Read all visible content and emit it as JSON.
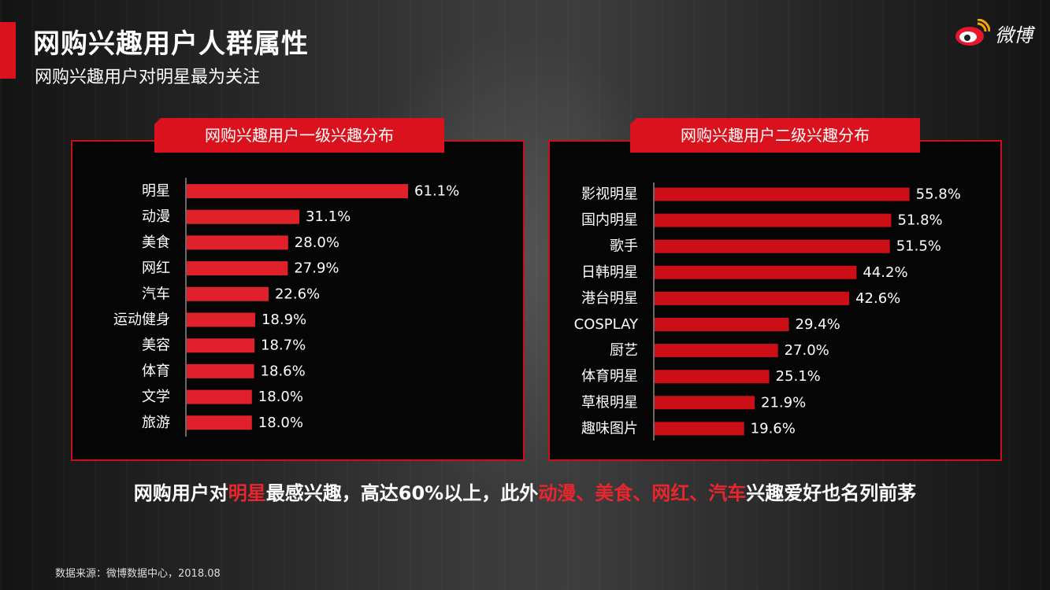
{
  "page": {
    "title": "网购兴趣用户人群属性",
    "subtitle": "网购兴趣用户对明星最为关注",
    "logo_text": "微博",
    "source": "数据来源：微博数据中心，2018.08",
    "summary": {
      "p1": "网购用户对",
      "h1": "明星",
      "p2": "最感兴趣，高达60%以上，此外",
      "h2": "动漫、美食、网红、汽车",
      "p3": "兴趣爱好也名列前茅"
    },
    "colors": {
      "accent": "#d9121d",
      "bar_left": "#e0202a",
      "bar_right": "#cc0e16",
      "panel_bg": "#050505"
    }
  },
  "chart_data": [
    {
      "type": "bar",
      "orientation": "horizontal",
      "title": "网购兴趣用户一级兴趣分布",
      "categories": [
        "明星",
        "动漫",
        "美食",
        "网红",
        "汽车",
        "运动健身",
        "美容",
        "体育",
        "文学",
        "旅游"
      ],
      "values": [
        61.1,
        31.1,
        28.0,
        27.9,
        22.6,
        18.9,
        18.7,
        18.6,
        18.0,
        18.0
      ],
      "labels": [
        "61.1%",
        "31.1%",
        "28.0%",
        "27.9%",
        "22.6%",
        "18.9%",
        "18.7%",
        "18.6%",
        "18.0%",
        "18.0%"
      ]
    },
    {
      "type": "bar",
      "orientation": "horizontal",
      "title": "网购兴趣用户二级兴趣分布",
      "categories": [
        "影视明星",
        "国内明星",
        "歌手",
        "日韩明星",
        "港台明星",
        "COSPLAY",
        "厨艺",
        "体育明星",
        "草根明星",
        "趣味图片"
      ],
      "values": [
        55.8,
        51.8,
        51.5,
        44.2,
        42.6,
        29.4,
        27.0,
        25.1,
        21.9,
        19.6
      ],
      "labels": [
        "55.8%",
        "51.8%",
        "51.5%",
        "44.2%",
        "42.6%",
        "29.4%",
        "27.0%",
        "25.1%",
        "21.9%",
        "19.6%"
      ]
    }
  ]
}
